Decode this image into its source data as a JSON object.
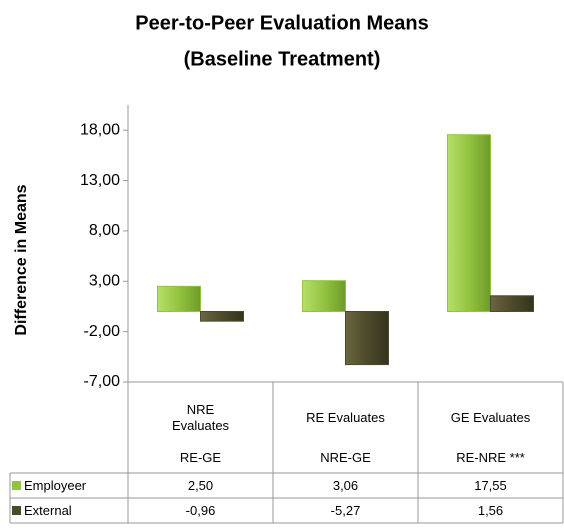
{
  "chart_data": {
    "type": "bar",
    "title": [
      "Peer-to-Peer Evaluation Means",
      "(Baseline Treatment)"
    ],
    "ylabel": "Difference in Means",
    "categories": [
      "NRE Evaluates",
      "RE Evaluates",
      "GE Evaluates"
    ],
    "comparisons": [
      "RE-GE",
      "NRE-GE",
      "RE-NRE ***"
    ],
    "series": [
      {
        "name": "Employeer",
        "color": "#92c43f",
        "values": [
          2.5,
          3.06,
          17.55
        ],
        "value_labels": [
          "2,50",
          "3,06",
          "17,55"
        ]
      },
      {
        "name": "External",
        "color": "#4d4a2c",
        "values": [
          -0.96,
          -5.27,
          1.56
        ],
        "value_labels": [
          "-0,96",
          "-5,27",
          "1,56"
        ]
      }
    ],
    "ylim": [
      -7,
      20.5
    ],
    "yticks": [
      {
        "value": 18,
        "label": "18,00"
      },
      {
        "value": 13,
        "label": "13,00"
      },
      {
        "value": 8,
        "label": "8,00"
      },
      {
        "value": 3,
        "label": "3,00"
      },
      {
        "value": -2,
        "label": "-2,00"
      },
      {
        "value": -7,
        "label": "-7,00"
      }
    ]
  }
}
